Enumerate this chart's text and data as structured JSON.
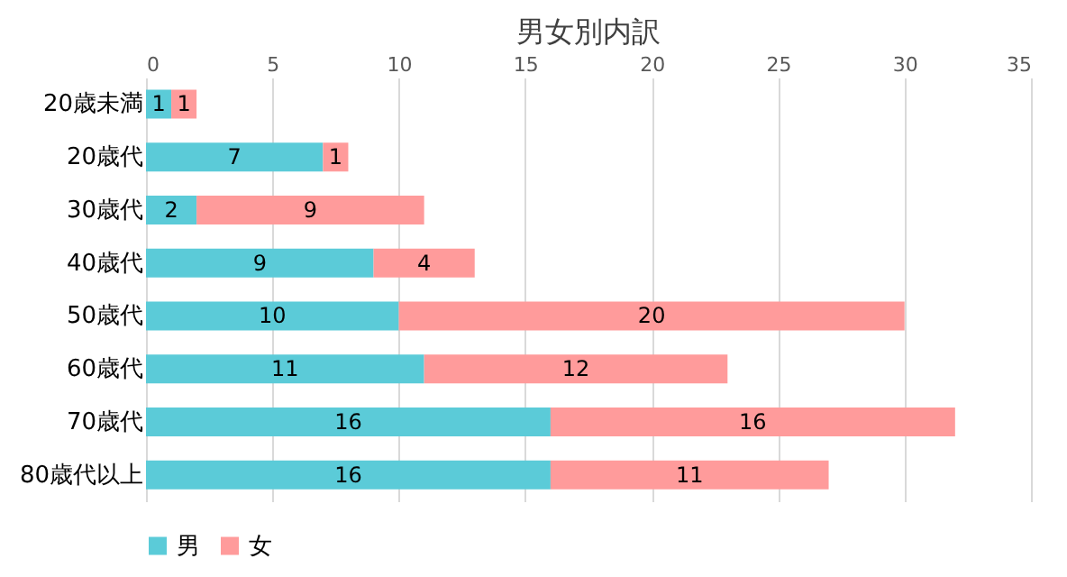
{
  "chart_data": {
    "type": "bar",
    "title": "男女別内訳",
    "orientation": "horizontal",
    "stacked": true,
    "categories": [
      "20歳未満",
      "20歳代",
      "30歳代",
      "40歳代",
      "50歳代",
      "60歳代",
      "70歳代",
      "80歳代以上"
    ],
    "series": [
      {
        "name": "男",
        "color": "#5bcbd8",
        "values": [
          1,
          7,
          2,
          9,
          10,
          11,
          16,
          16
        ]
      },
      {
        "name": "女",
        "color": "#ff9b9b",
        "values": [
          1,
          1,
          9,
          4,
          20,
          12,
          16,
          11
        ]
      }
    ],
    "xlim": [
      0,
      35
    ],
    "xticks": [
      0,
      5,
      10,
      15,
      20,
      25,
      30,
      35
    ],
    "grid": "x",
    "legend": "bottom",
    "data_labels": true
  }
}
